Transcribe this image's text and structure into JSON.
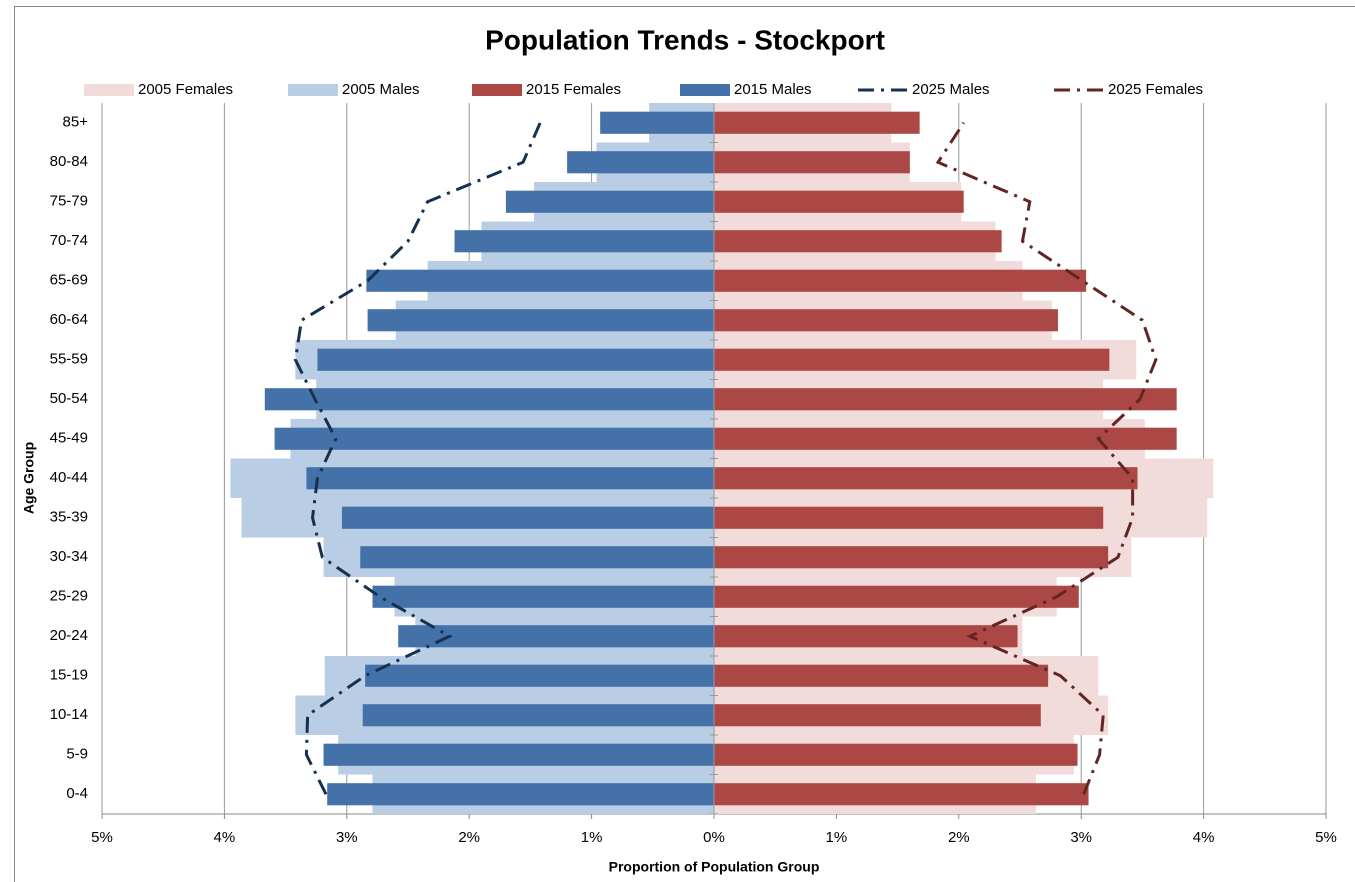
{
  "chart_data": {
    "type": "bar",
    "title": "Population Trends - Stockport",
    "x_label": "Proportion of Population Group",
    "y_label": "Age Group",
    "categories": [
      "0-4",
      "5-9",
      "10-14",
      "15-19",
      "20-24",
      "25-29",
      "30-34",
      "35-39",
      "40-44",
      "45-49",
      "50-54",
      "55-59",
      "60-64",
      "65-69",
      "70-74",
      "75-79",
      "80-84",
      "85+"
    ],
    "xlim": [
      -5,
      5
    ],
    "xticks": [
      {
        "value": -5,
        "label": "5%"
      },
      {
        "value": -4,
        "label": "4%"
      },
      {
        "value": -3,
        "label": "3%"
      },
      {
        "value": -2,
        "label": "2%"
      },
      {
        "value": -1,
        "label": "1%"
      },
      {
        "value": 0,
        "label": "0%"
      },
      {
        "value": 1,
        "label": "1%"
      },
      {
        "value": 2,
        "label": "2%"
      },
      {
        "value": 3,
        "label": "3%"
      },
      {
        "value": 4,
        "label": "4%"
      },
      {
        "value": 5,
        "label": "5%"
      }
    ],
    "grid": true,
    "legend": "top",
    "series": [
      {
        "name": "2005 Females",
        "type": "bar",
        "color": "#f2dcdb",
        "values": [
          2.63,
          2.94,
          3.22,
          3.14,
          2.52,
          2.8,
          3.41,
          4.03,
          4.08,
          3.52,
          3.18,
          3.45,
          2.76,
          2.52,
          2.3,
          2.02,
          1.6,
          1.45
        ]
      },
      {
        "name": "2005 Males",
        "type": "bar",
        "color": "#b9cde5",
        "values": [
          -2.79,
          -3.07,
          -3.42,
          -3.18,
          -2.44,
          -2.61,
          -3.19,
          -3.86,
          -3.95,
          -3.46,
          -3.25,
          -3.42,
          -2.6,
          -2.34,
          -1.9,
          -1.47,
          -0.96,
          -0.53
        ]
      },
      {
        "name": "2015 Females",
        "type": "bar",
        "color": "#ab4744",
        "values": [
          3.06,
          2.97,
          2.67,
          2.73,
          2.48,
          2.98,
          3.22,
          3.18,
          3.46,
          3.78,
          3.78,
          3.23,
          2.81,
          3.04,
          2.35,
          2.04,
          1.6,
          1.68
        ]
      },
      {
        "name": "2015 Males",
        "type": "bar",
        "color": "#4472a8",
        "values": [
          -3.16,
          -3.19,
          -2.87,
          -2.85,
          -2.58,
          -2.79,
          -2.89,
          -3.04,
          -3.33,
          -3.59,
          -3.67,
          -3.24,
          -2.83,
          -2.84,
          -2.12,
          -1.7,
          -1.2,
          -0.93
        ]
      },
      {
        "name": "2025 Males",
        "type": "line",
        "color": "#17304f",
        "values": [
          -3.17,
          -3.33,
          -3.32,
          -2.85,
          -2.16,
          -2.73,
          -3.2,
          -3.28,
          -3.24,
          -3.09,
          -3.26,
          -3.42,
          -3.37,
          -2.83,
          -2.5,
          -2.34,
          -1.56,
          -1.42
        ]
      },
      {
        "name": "2025 Females",
        "type": "line",
        "color": "#632523",
        "values": [
          3.02,
          3.15,
          3.18,
          2.83,
          2.09,
          2.8,
          3.3,
          3.42,
          3.42,
          3.14,
          3.48,
          3.61,
          3.5,
          3.01,
          2.52,
          2.58,
          1.83,
          2.04
        ]
      }
    ]
  }
}
